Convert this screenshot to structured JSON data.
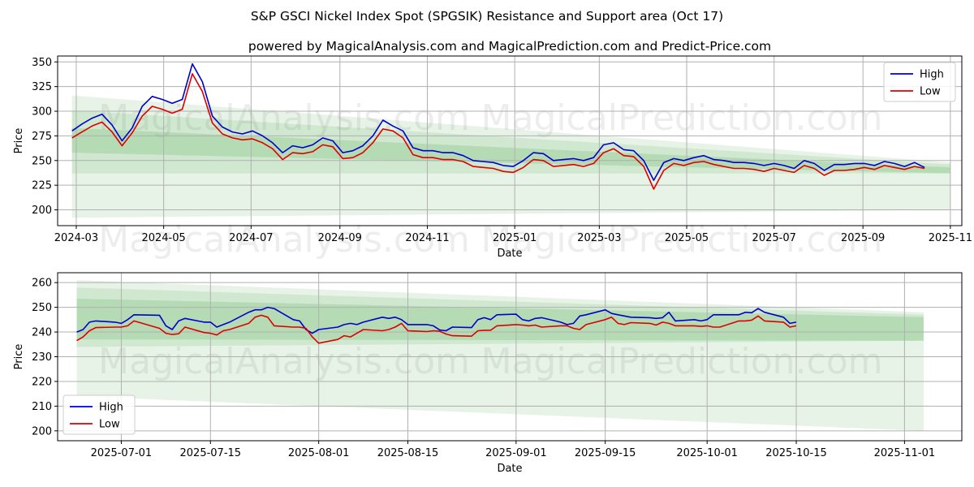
{
  "title": "S&P GSCI Nickel Index Spot (SPGSIK) Resistance and Support area (Oct 17)",
  "subtitle": "powered by MagicalAnalysis.com and MagicalPrediction.com and Predict-Price.com",
  "watermarks": [
    "MagicalAnalysis.com",
    "MagicalPrediction.com"
  ],
  "colors": {
    "high": "#0000cc",
    "low": "#dd0000",
    "band": "#2e9e2e",
    "grid": "#b0b0b0"
  },
  "chart_data": [
    {
      "type": "line",
      "xlabel": "Date",
      "ylabel": "Price",
      "grid": true,
      "legend_position": "top-right",
      "xlim": [
        "2024-02-17",
        "2025-11-09"
      ],
      "ylim": [
        184,
        356
      ],
      "x_ticks": [
        "2024-03",
        "2024-05",
        "2024-07",
        "2024-09",
        "2024-11",
        "2025-01",
        "2025-03",
        "2025-05",
        "2025-07",
        "2025-09",
        "2025-11"
      ],
      "y_ticks": [
        200,
        225,
        250,
        275,
        300,
        325,
        350
      ],
      "bands": [
        {
          "x": [
            "2024-02-27",
            "2025-11-01"
          ],
          "upper": [
            316,
            248
          ],
          "lower": [
            192,
            200
          ]
        },
        {
          "x": [
            "2024-02-27",
            "2025-11-01"
          ],
          "upper": [
            301,
            246
          ],
          "lower": [
            237,
            237
          ]
        },
        {
          "x": [
            "2024-02-27",
            "2025-11-01"
          ],
          "upper": [
            283,
            243
          ],
          "lower": [
            258,
            237
          ]
        }
      ],
      "series": [
        {
          "name": "High",
          "x": [
            "2024-02-27",
            "2024-03-05",
            "2024-03-12",
            "2024-03-19",
            "2024-03-26",
            "2024-04-02",
            "2024-04-09",
            "2024-04-16",
            "2024-04-23",
            "2024-04-30",
            "2024-05-07",
            "2024-05-14",
            "2024-05-21",
            "2024-05-28",
            "2024-06-04",
            "2024-06-11",
            "2024-06-18",
            "2024-06-25",
            "2024-07-02",
            "2024-07-09",
            "2024-07-16",
            "2024-07-23",
            "2024-07-30",
            "2024-08-06",
            "2024-08-13",
            "2024-08-20",
            "2024-08-27",
            "2024-09-03",
            "2024-09-10",
            "2024-09-17",
            "2024-09-24",
            "2024-10-01",
            "2024-10-08",
            "2024-10-15",
            "2024-10-22",
            "2024-10-29",
            "2024-11-05",
            "2024-11-12",
            "2024-11-19",
            "2024-11-26",
            "2024-12-03",
            "2024-12-10",
            "2024-12-17",
            "2024-12-24",
            "2024-12-31",
            "2025-01-07",
            "2025-01-14",
            "2025-01-21",
            "2025-01-28",
            "2025-02-04",
            "2025-02-11",
            "2025-02-18",
            "2025-02-25",
            "2025-03-04",
            "2025-03-11",
            "2025-03-18",
            "2025-03-25",
            "2025-04-01",
            "2025-04-08",
            "2025-04-15",
            "2025-04-22",
            "2025-04-29",
            "2025-05-06",
            "2025-05-13",
            "2025-05-20",
            "2025-05-27",
            "2025-06-03",
            "2025-06-10",
            "2025-06-17",
            "2025-06-24",
            "2025-07-01",
            "2025-07-08",
            "2025-07-15",
            "2025-07-22",
            "2025-07-29",
            "2025-08-05",
            "2025-08-12",
            "2025-08-19",
            "2025-08-26",
            "2025-09-02",
            "2025-09-09",
            "2025-09-16",
            "2025-09-23",
            "2025-09-30",
            "2025-10-07",
            "2025-10-14"
          ],
          "values": [
            280,
            287,
            293,
            297,
            286,
            270,
            283,
            305,
            315,
            312,
            308,
            312,
            348,
            330,
            295,
            284,
            279,
            277,
            280,
            275,
            268,
            258,
            265,
            263,
            266,
            273,
            270,
            258,
            260,
            265,
            275,
            291,
            285,
            280,
            263,
            260,
            260,
            258,
            258,
            255,
            250,
            249,
            248,
            245,
            244,
            250,
            258,
            257,
            250,
            251,
            252,
            250,
            253,
            266,
            268,
            261,
            260,
            250,
            230,
            248,
            252,
            250,
            253,
            255,
            251,
            250,
            248,
            248,
            247,
            245,
            247,
            245,
            242,
            250,
            247,
            240,
            246,
            246,
            247,
            247,
            245,
            249,
            247,
            244,
            248,
            243
          ]
        },
        {
          "name": "Low",
          "x": [
            "2024-02-27",
            "2024-03-05",
            "2024-03-12",
            "2024-03-19",
            "2024-03-26",
            "2024-04-02",
            "2024-04-09",
            "2024-04-16",
            "2024-04-23",
            "2024-04-30",
            "2024-05-07",
            "2024-05-14",
            "2024-05-21",
            "2024-05-28",
            "2024-06-04",
            "2024-06-11",
            "2024-06-18",
            "2024-06-25",
            "2024-07-02",
            "2024-07-09",
            "2024-07-16",
            "2024-07-23",
            "2024-07-30",
            "2024-08-06",
            "2024-08-13",
            "2024-08-20",
            "2024-08-27",
            "2024-09-03",
            "2024-09-10",
            "2024-09-17",
            "2024-09-24",
            "2024-10-01",
            "2024-10-08",
            "2024-10-15",
            "2024-10-22",
            "2024-10-29",
            "2024-11-05",
            "2024-11-12",
            "2024-11-19",
            "2024-11-26",
            "2024-12-03",
            "2024-12-10",
            "2024-12-17",
            "2024-12-24",
            "2024-12-31",
            "2025-01-07",
            "2025-01-14",
            "2025-01-21",
            "2025-01-28",
            "2025-02-04",
            "2025-02-11",
            "2025-02-18",
            "2025-02-25",
            "2025-03-04",
            "2025-03-11",
            "2025-03-18",
            "2025-03-25",
            "2025-04-01",
            "2025-04-08",
            "2025-04-15",
            "2025-04-22",
            "2025-04-29",
            "2025-05-06",
            "2025-05-13",
            "2025-05-20",
            "2025-05-27",
            "2025-06-03",
            "2025-06-10",
            "2025-06-17",
            "2025-06-24",
            "2025-07-01",
            "2025-07-08",
            "2025-07-15",
            "2025-07-22",
            "2025-07-29",
            "2025-08-05",
            "2025-08-12",
            "2025-08-19",
            "2025-08-26",
            "2025-09-02",
            "2025-09-09",
            "2025-09-16",
            "2025-09-23",
            "2025-09-30",
            "2025-10-07",
            "2025-10-14"
          ],
          "values": [
            273,
            279,
            285,
            289,
            279,
            265,
            278,
            295,
            305,
            302,
            298,
            302,
            338,
            320,
            288,
            277,
            273,
            271,
            272,
            268,
            262,
            251,
            258,
            257,
            259,
            266,
            264,
            252,
            253,
            258,
            268,
            282,
            280,
            273,
            256,
            253,
            253,
            251,
            251,
            249,
            244,
            243,
            242,
            239,
            238,
            243,
            251,
            250,
            244,
            245,
            246,
            244,
            247,
            258,
            262,
            255,
            254,
            244,
            221,
            240,
            247,
            245,
            248,
            249,
            246,
            244,
            242,
            242,
            241,
            239,
            242,
            240,
            238,
            245,
            242,
            235,
            240,
            240,
            241,
            243,
            241,
            245,
            243,
            241,
            244,
            242
          ]
        }
      ]
    },
    {
      "type": "line",
      "xlabel": "Date",
      "ylabel": "Price",
      "grid": true,
      "legend_position": "bottom-left",
      "xlim": [
        "2025-06-21",
        "2025-11-10"
      ],
      "ylim": [
        196,
        264
      ],
      "x_ticks": [
        "2025-07-01",
        "2025-07-15",
        "2025-08-01",
        "2025-08-15",
        "2025-09-01",
        "2025-09-15",
        "2025-10-01",
        "2025-10-15",
        "2025-11-01"
      ],
      "y_ticks": [
        200,
        210,
        220,
        230,
        240,
        250,
        260
      ],
      "bands": [
        {
          "x": [
            "2025-06-24",
            "2025-11-04"
          ],
          "upper": [
            261,
            248
          ],
          "lower": [
            214,
            200
          ]
        },
        {
          "x": [
            "2025-06-24",
            "2025-11-04"
          ],
          "upper": [
            258,
            247
          ],
          "lower": [
            234,
            236.5
          ]
        },
        {
          "x": [
            "2025-06-24",
            "2025-11-04"
          ],
          "upper": [
            253.5,
            246
          ],
          "lower": [
            237,
            236.5
          ]
        }
      ],
      "series": [
        {
          "name": "High",
          "x": [
            "2025-06-24",
            "2025-06-25",
            "2025-06-26",
            "2025-06-27",
            "2025-06-30",
            "2025-07-01",
            "2025-07-02",
            "2025-07-03",
            "2025-07-07",
            "2025-07-08",
            "2025-07-09",
            "2025-07-10",
            "2025-07-11",
            "2025-07-14",
            "2025-07-15",
            "2025-07-16",
            "2025-07-17",
            "2025-07-18",
            "2025-07-21",
            "2025-07-22",
            "2025-07-23",
            "2025-07-24",
            "2025-07-25",
            "2025-07-28",
            "2025-07-29",
            "2025-07-30",
            "2025-07-31",
            "2025-08-01",
            "2025-08-04",
            "2025-08-05",
            "2025-08-06",
            "2025-08-07",
            "2025-08-08",
            "2025-08-11",
            "2025-08-12",
            "2025-08-13",
            "2025-08-14",
            "2025-08-15",
            "2025-08-18",
            "2025-08-19",
            "2025-08-20",
            "2025-08-21",
            "2025-08-22",
            "2025-08-25",
            "2025-08-26",
            "2025-08-27",
            "2025-08-28",
            "2025-08-29",
            "2025-09-01",
            "2025-09-02",
            "2025-09-03",
            "2025-09-04",
            "2025-09-05",
            "2025-09-08",
            "2025-09-09",
            "2025-09-10",
            "2025-09-11",
            "2025-09-12",
            "2025-09-15",
            "2025-09-16",
            "2025-09-17",
            "2025-09-18",
            "2025-09-19",
            "2025-09-22",
            "2025-09-23",
            "2025-09-24",
            "2025-09-25",
            "2025-09-26",
            "2025-09-29",
            "2025-09-30",
            "2025-10-01",
            "2025-10-02",
            "2025-10-03",
            "2025-10-06",
            "2025-10-07",
            "2025-10-08",
            "2025-10-09",
            "2025-10-10",
            "2025-10-13",
            "2025-10-14",
            "2025-10-15"
          ],
          "values": [
            240,
            241,
            244,
            244.5,
            244,
            243.5,
            245,
            247,
            246.8,
            242.5,
            241,
            244.5,
            245.5,
            244,
            244,
            242,
            243,
            244,
            248,
            249,
            249,
            250,
            249.5,
            245,
            244.5,
            241,
            239.5,
            241,
            242,
            243,
            243.5,
            243,
            244,
            246,
            245.5,
            246,
            245,
            243,
            243,
            242.5,
            240.8,
            240.5,
            242,
            241.8,
            245,
            245.8,
            245,
            247,
            247.2,
            245,
            244.5,
            245.5,
            245.8,
            244,
            243,
            243.5,
            246.5,
            247,
            249,
            247.5,
            247,
            246.5,
            246,
            245.8,
            245.5,
            245.8,
            248,
            244.5,
            245,
            244.5,
            245,
            247,
            247,
            247,
            248,
            247.8,
            249.5,
            248,
            246,
            243.5,
            244
          ]
        },
        {
          "name": "Low",
          "x": [
            "2025-06-24",
            "2025-06-25",
            "2025-06-26",
            "2025-06-27",
            "2025-06-30",
            "2025-07-01",
            "2025-07-02",
            "2025-07-03",
            "2025-07-07",
            "2025-07-08",
            "2025-07-09",
            "2025-07-10",
            "2025-07-11",
            "2025-07-14",
            "2025-07-15",
            "2025-07-16",
            "2025-07-17",
            "2025-07-18",
            "2025-07-21",
            "2025-07-22",
            "2025-07-23",
            "2025-07-24",
            "2025-07-25",
            "2025-07-28",
            "2025-07-29",
            "2025-07-30",
            "2025-07-31",
            "2025-08-01",
            "2025-08-04",
            "2025-08-05",
            "2025-08-06",
            "2025-08-07",
            "2025-08-08",
            "2025-08-11",
            "2025-08-12",
            "2025-08-13",
            "2025-08-14",
            "2025-08-15",
            "2025-08-18",
            "2025-08-19",
            "2025-08-20",
            "2025-08-21",
            "2025-08-22",
            "2025-08-25",
            "2025-08-26",
            "2025-08-27",
            "2025-08-28",
            "2025-08-29",
            "2025-09-01",
            "2025-09-02",
            "2025-09-03",
            "2025-09-04",
            "2025-09-05",
            "2025-09-08",
            "2025-09-09",
            "2025-09-10",
            "2025-09-11",
            "2025-09-12",
            "2025-09-15",
            "2025-09-16",
            "2025-09-17",
            "2025-09-18",
            "2025-09-19",
            "2025-09-22",
            "2025-09-23",
            "2025-09-24",
            "2025-09-25",
            "2025-09-26",
            "2025-09-29",
            "2025-09-30",
            "2025-10-01",
            "2025-10-02",
            "2025-10-03",
            "2025-10-06",
            "2025-10-07",
            "2025-10-08",
            "2025-10-09",
            "2025-10-10",
            "2025-10-13",
            "2025-10-14",
            "2025-10-15"
          ],
          "values": [
            236.5,
            238,
            240.5,
            241.8,
            242,
            242,
            242.5,
            244.5,
            241.5,
            239.5,
            239,
            239.3,
            242,
            239.8,
            239.5,
            238.8,
            240.5,
            241,
            243.5,
            246,
            246.8,
            246,
            242.5,
            242,
            242,
            241.5,
            238,
            235.5,
            237,
            238.5,
            238,
            239.5,
            241,
            240.5,
            241,
            242,
            243.5,
            240.5,
            240.2,
            240.5,
            240.3,
            239.2,
            238.5,
            238.3,
            240.5,
            240.7,
            240.7,
            242.5,
            243,
            242.8,
            242.5,
            242.8,
            242,
            242.5,
            242.5,
            241.5,
            241,
            243,
            245,
            246,
            243.5,
            243,
            243.8,
            243.5,
            242.8,
            244,
            243.5,
            242.5,
            242.5,
            242.3,
            242.5,
            242,
            242,
            244.5,
            244.5,
            244.8,
            246.5,
            244.5,
            244,
            242,
            242.5
          ]
        }
      ]
    }
  ]
}
